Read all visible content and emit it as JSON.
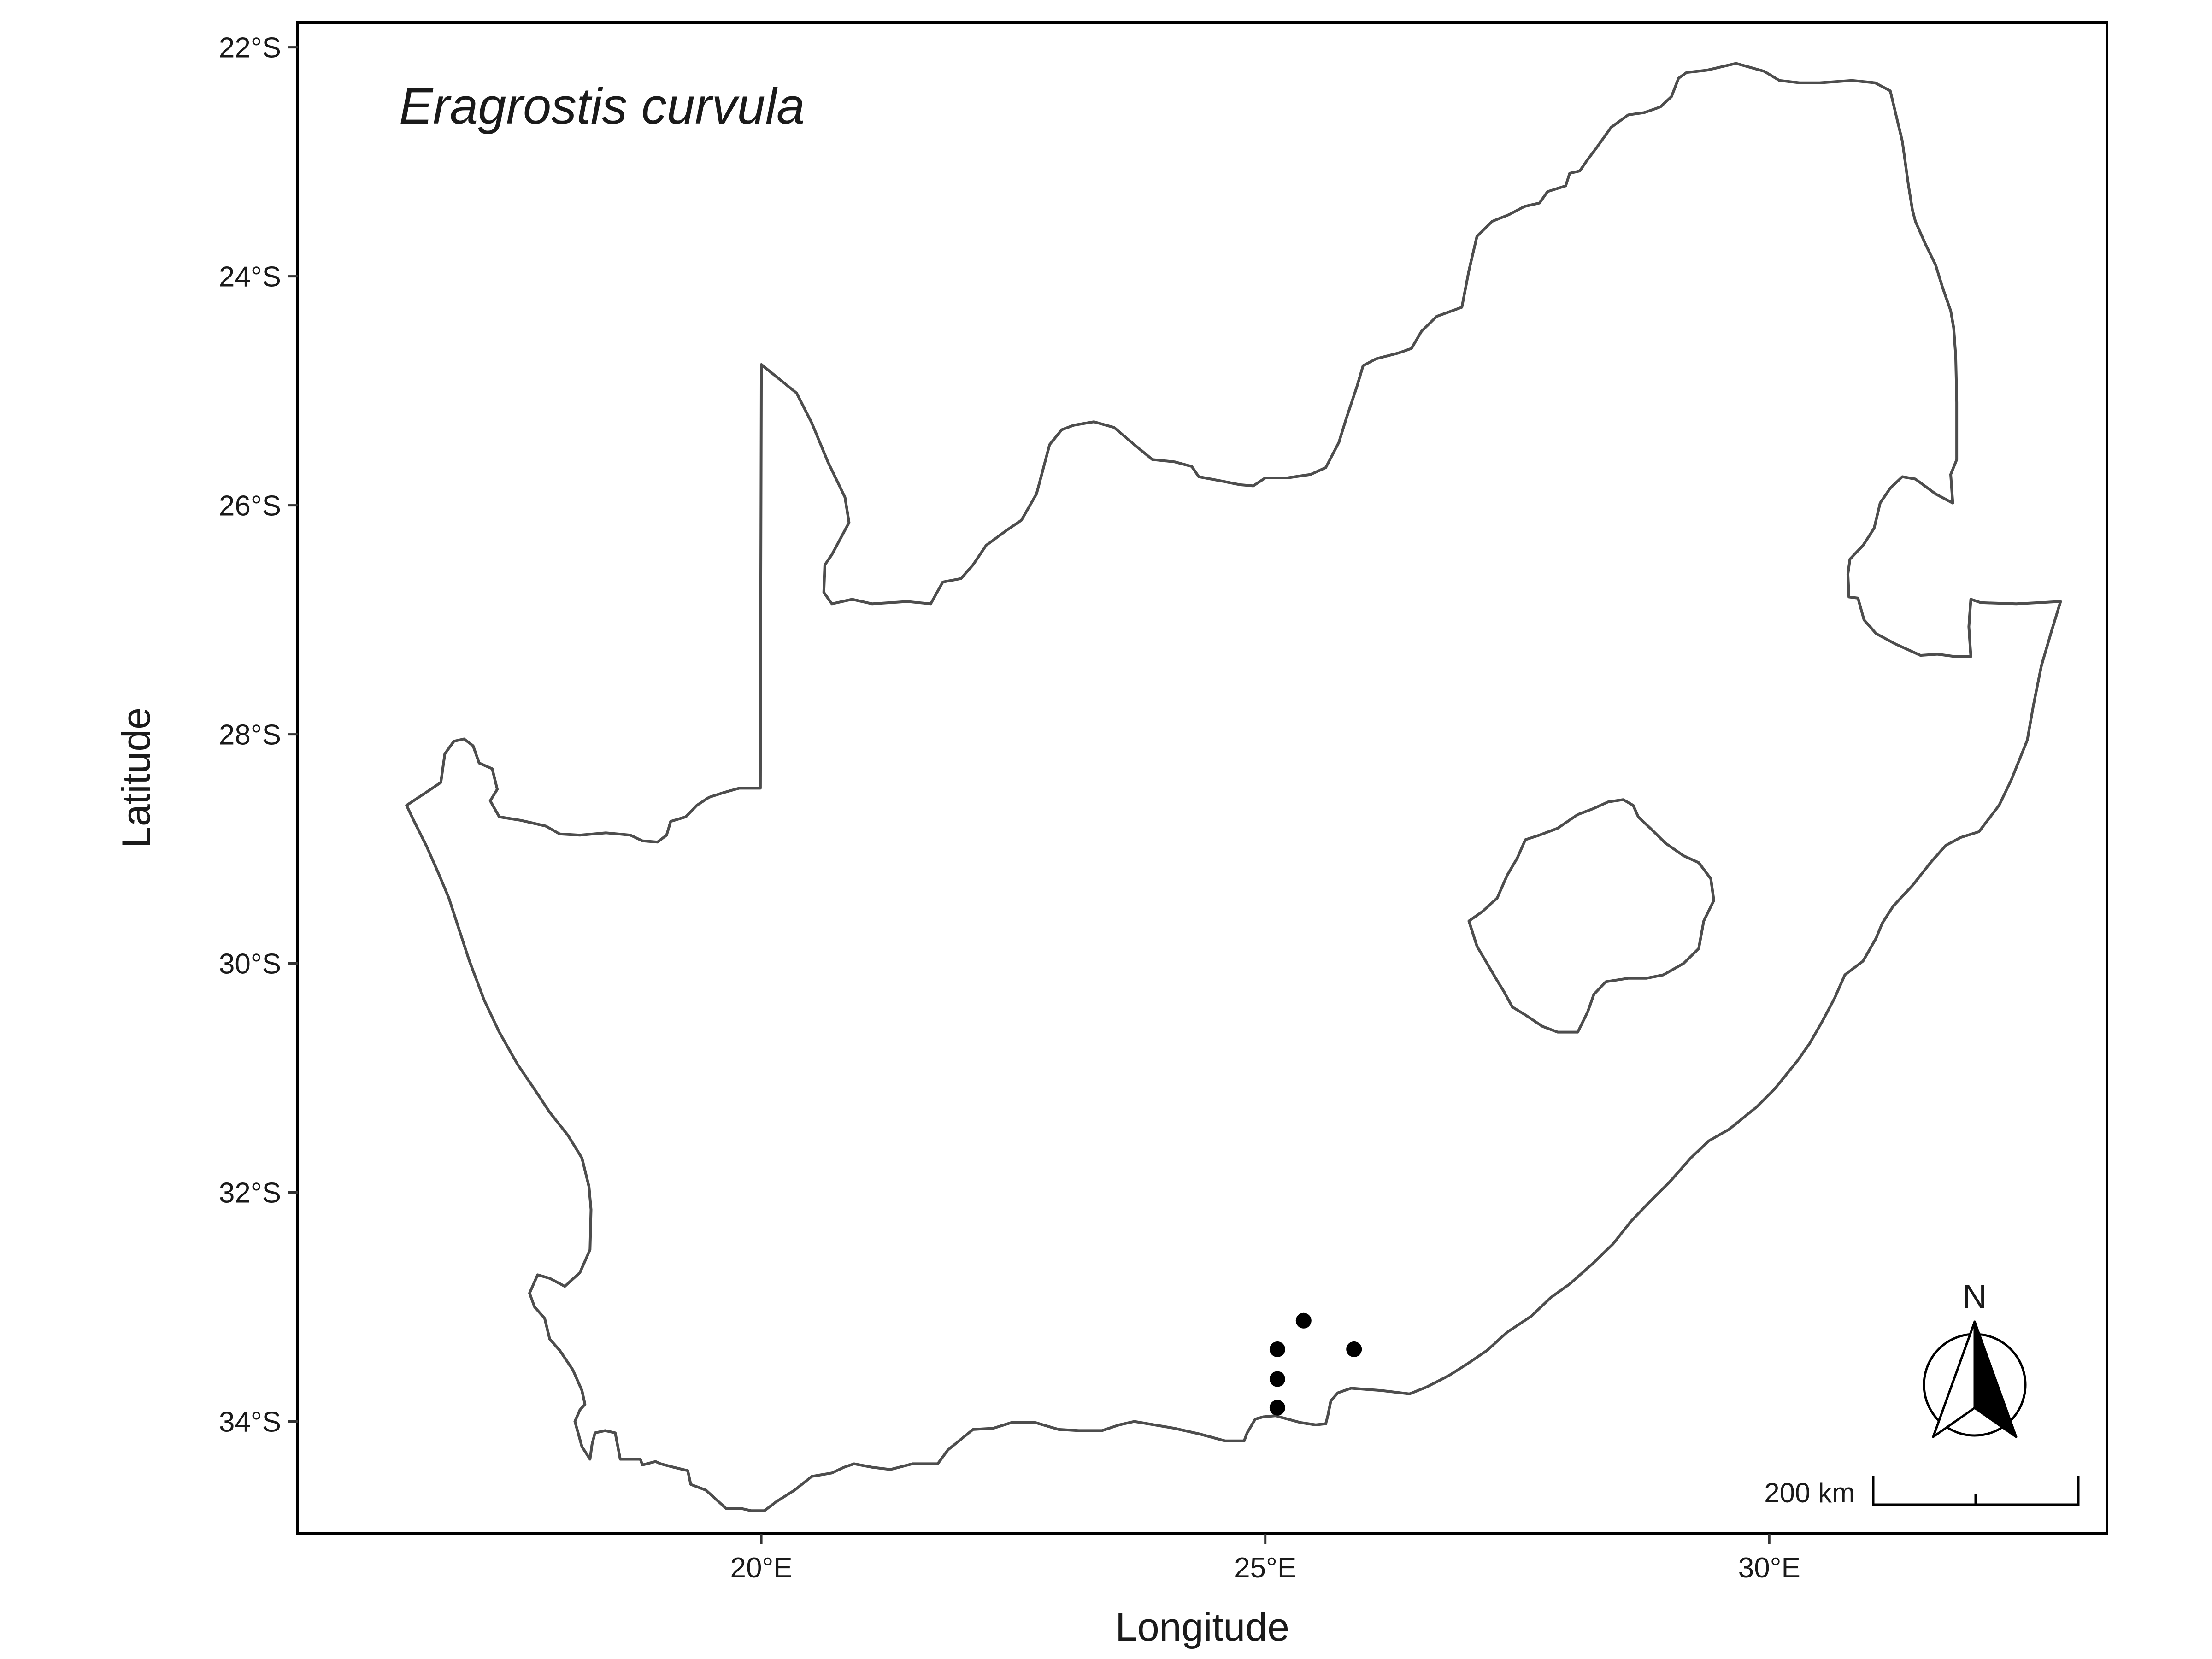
{
  "map": {
    "title": "Eragrostis curvula",
    "xlabel": "Longitude",
    "ylabel": "Latitude",
    "x_ticks": [
      {
        "value": 20,
        "label": "20°E"
      },
      {
        "value": 25,
        "label": "25°E"
      },
      {
        "value": 30,
        "label": "30°E"
      }
    ],
    "y_ticks": [
      {
        "value": -22,
        "label": "22°S"
      },
      {
        "value": -24,
        "label": "24°S"
      },
      {
        "value": -26,
        "label": "26°S"
      },
      {
        "value": -28,
        "label": "28°S"
      },
      {
        "value": -30,
        "label": "30°S"
      },
      {
        "value": -32,
        "label": "32°S"
      },
      {
        "value": -34,
        "label": "34°S"
      }
    ],
    "xlim": [
      15.4,
      33.35
    ],
    "ylim": [
      -34.98,
      -21.78
    ],
    "north_arrow_label": "N",
    "scale_bar_label": "200 km",
    "colors": {
      "outline": "#4d4d4d",
      "points": "#000000",
      "frame": "#000000"
    },
    "occurrence_points": [
      {
        "lon": 25.38,
        "lat": -33.12
      },
      {
        "lon": 25.12,
        "lat": -33.37
      },
      {
        "lon": 25.88,
        "lat": -33.37
      },
      {
        "lon": 25.12,
        "lat": -33.63
      },
      {
        "lon": 25.12,
        "lat": -33.88
      }
    ]
  }
}
